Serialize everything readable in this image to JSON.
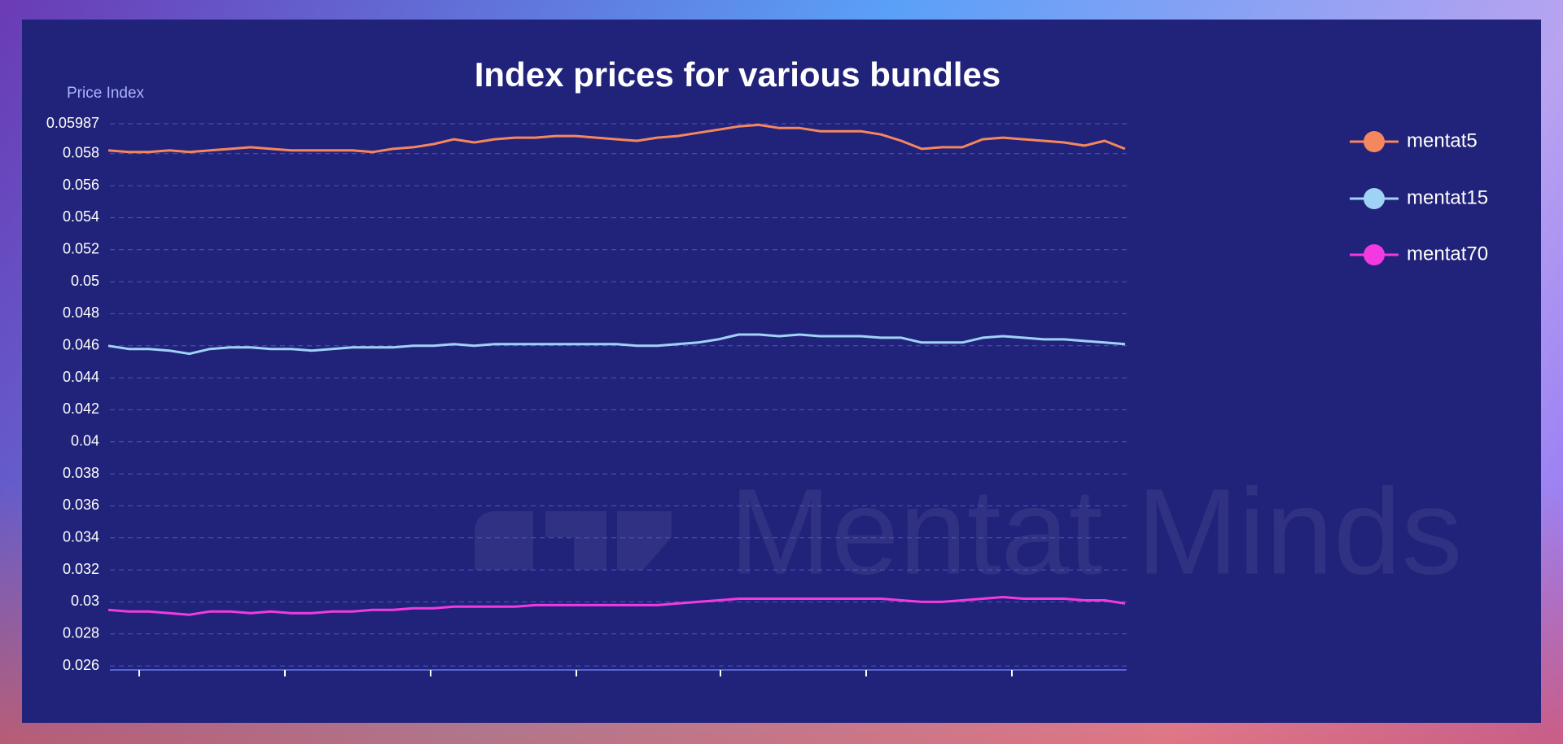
{
  "chart_data": {
    "type": "line",
    "title": "Index prices for various bundles",
    "y_label": "Price Index",
    "watermark": "Mentat Minds",
    "ylim": [
      0.02575,
      0.05987
    ],
    "yticks": [
      0.026,
      0.028,
      0.03,
      0.032,
      0.034,
      0.036,
      0.038,
      0.04,
      0.042,
      0.044,
      0.046,
      0.048,
      0.05,
      0.052,
      0.054,
      0.056,
      0.058,
      0.05987
    ],
    "grid": true,
    "legend": "right",
    "series": [
      {
        "name": "mentat5",
        "color": "#f5875e",
        "values": [
          0.0582,
          0.0581,
          0.0581,
          0.0582,
          0.0581,
          0.0582,
          0.0583,
          0.0584,
          0.0583,
          0.0582,
          0.0582,
          0.0582,
          0.0582,
          0.0581,
          0.0583,
          0.0584,
          0.0586,
          0.0589,
          0.0587,
          0.0589,
          0.059,
          0.059,
          0.0591,
          0.0591,
          0.059,
          0.0589,
          0.0588,
          0.059,
          0.0591,
          0.0593,
          0.0595,
          0.0597,
          0.0598,
          0.0596,
          0.0596,
          0.0594,
          0.0594,
          0.0594,
          0.0592,
          0.0588,
          0.0583,
          0.0584,
          0.0584,
          0.0589,
          0.059,
          0.0589,
          0.0588,
          0.0587,
          0.0585,
          0.0588,
          0.0583
        ]
      },
      {
        "name": "mentat15",
        "color": "#9fd3f5",
        "values": [
          0.046,
          0.0458,
          0.0458,
          0.0457,
          0.0455,
          0.0458,
          0.0459,
          0.0459,
          0.0458,
          0.0458,
          0.0457,
          0.0458,
          0.0459,
          0.0459,
          0.0459,
          0.046,
          0.046,
          0.0461,
          0.046,
          0.0461,
          0.0461,
          0.0461,
          0.0461,
          0.0461,
          0.0461,
          0.0461,
          0.046,
          0.046,
          0.0461,
          0.0462,
          0.0464,
          0.0467,
          0.0467,
          0.0466,
          0.0467,
          0.0466,
          0.0466,
          0.0466,
          0.0465,
          0.0465,
          0.0462,
          0.0462,
          0.0462,
          0.0465,
          0.0466,
          0.0465,
          0.0464,
          0.0464,
          0.0463,
          0.0462,
          0.0461
        ]
      },
      {
        "name": "mentat70",
        "color": "#f23ae0",
        "values": [
          0.0295,
          0.0294,
          0.0294,
          0.0293,
          0.0292,
          0.0294,
          0.0294,
          0.0293,
          0.0294,
          0.0293,
          0.0293,
          0.0294,
          0.0294,
          0.0295,
          0.0295,
          0.0296,
          0.0296,
          0.0297,
          0.0297,
          0.0297,
          0.0297,
          0.0298,
          0.0298,
          0.0298,
          0.0298,
          0.0298,
          0.0298,
          0.0298,
          0.0299,
          0.03,
          0.0301,
          0.0302,
          0.0302,
          0.0302,
          0.0302,
          0.0302,
          0.0302,
          0.0302,
          0.0302,
          0.0301,
          0.03,
          0.03,
          0.0301,
          0.0302,
          0.0303,
          0.0302,
          0.0302,
          0.0302,
          0.0301,
          0.0301,
          0.0299
        ]
      }
    ]
  }
}
